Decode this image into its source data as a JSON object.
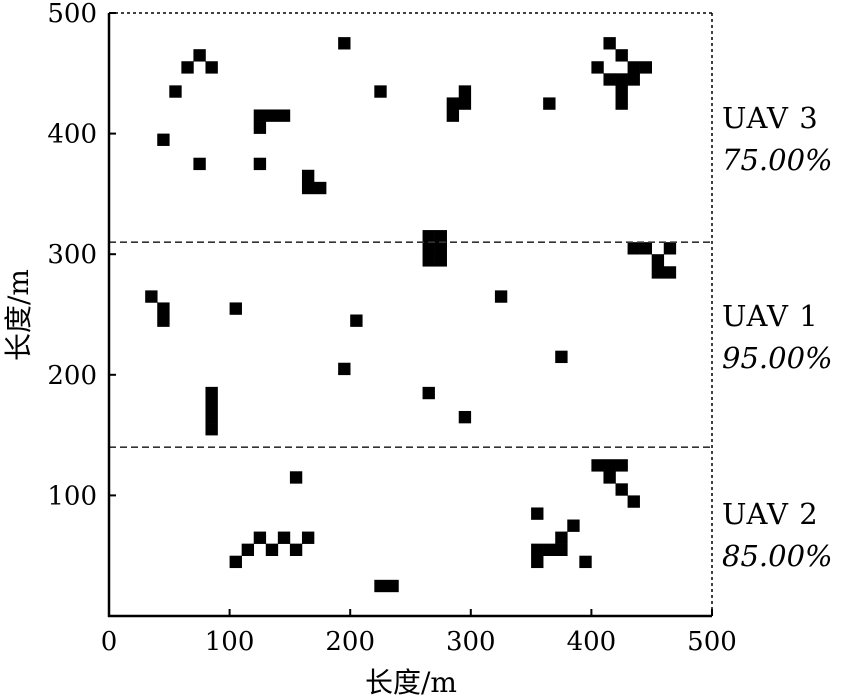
{
  "chart_data": {
    "type": "scatter",
    "xlabel": "长度/m",
    "ylabel": "长度/m",
    "xlim": [
      0,
      500
    ],
    "ylim": [
      0,
      500
    ],
    "xticks": [
      "0",
      "100",
      "200",
      "300",
      "400",
      "500"
    ],
    "yticks": [
      "100",
      "200",
      "300",
      "400",
      "500"
    ],
    "cell_size": 10,
    "partitions": [
      {
        "y": 310,
        "name": "UAV 3",
        "coverage": "75.00%"
      },
      {
        "y": 140,
        "name": "UAV 1",
        "coverage": "95.00%"
      },
      {
        "y": 0,
        "name": "UAV 2",
        "coverage": "85.00%"
      }
    ],
    "partition_boundaries": [
      310,
      140
    ],
    "obstacles": [
      [
        75,
        465
      ],
      [
        65,
        455
      ],
      [
        85,
        455
      ],
      [
        55,
        435
      ],
      [
        45,
        395
      ],
      [
        75,
        375
      ],
      [
        195,
        475
      ],
      [
        225,
        435
      ],
      [
        125,
        415
      ],
      [
        135,
        415
      ],
      [
        145,
        415
      ],
      [
        125,
        405
      ],
      [
        125,
        375
      ],
      [
        165,
        365
      ],
      [
        165,
        355
      ],
      [
        175,
        355
      ],
      [
        295,
        435
      ],
      [
        285,
        425
      ],
      [
        295,
        425
      ],
      [
        285,
        415
      ],
      [
        365,
        425
      ],
      [
        415,
        475
      ],
      [
        425,
        465
      ],
      [
        405,
        455
      ],
      [
        435,
        455
      ],
      [
        445,
        455
      ],
      [
        415,
        445
      ],
      [
        425,
        445
      ],
      [
        435,
        445
      ],
      [
        425,
        435
      ],
      [
        425,
        425
      ],
      [
        265,
        315
      ],
      [
        275,
        315
      ],
      [
        265,
        305
      ],
      [
        275,
        305
      ],
      [
        265,
        295
      ],
      [
        275,
        295
      ],
      [
        435,
        305
      ],
      [
        445,
        305
      ],
      [
        465,
        305
      ],
      [
        455,
        295
      ],
      [
        455,
        285
      ],
      [
        465,
        285
      ],
      [
        35,
        265
      ],
      [
        45,
        255
      ],
      [
        45,
        245
      ],
      [
        105,
        255
      ],
      [
        205,
        245
      ],
      [
        325,
        265
      ],
      [
        375,
        215
      ],
      [
        195,
        205
      ],
      [
        265,
        185
      ],
      [
        85,
        185
      ],
      [
        85,
        175
      ],
      [
        85,
        165
      ],
      [
        85,
        155
      ],
      [
        295,
        165
      ],
      [
        405,
        125
      ],
      [
        415,
        125
      ],
      [
        425,
        125
      ],
      [
        415,
        115
      ],
      [
        425,
        105
      ],
      [
        435,
        95
      ],
      [
        155,
        115
      ],
      [
        355,
        85
      ],
      [
        385,
        75
      ],
      [
        125,
        65
      ],
      [
        145,
        65
      ],
      [
        165,
        65
      ],
      [
        115,
        55
      ],
      [
        135,
        55
      ],
      [
        155,
        55
      ],
      [
        105,
        45
      ],
      [
        375,
        65
      ],
      [
        365,
        55
      ],
      [
        375,
        55
      ],
      [
        355,
        55
      ],
      [
        355,
        45
      ],
      [
        395,
        45
      ],
      [
        225,
        25
      ],
      [
        235,
        25
      ]
    ]
  }
}
